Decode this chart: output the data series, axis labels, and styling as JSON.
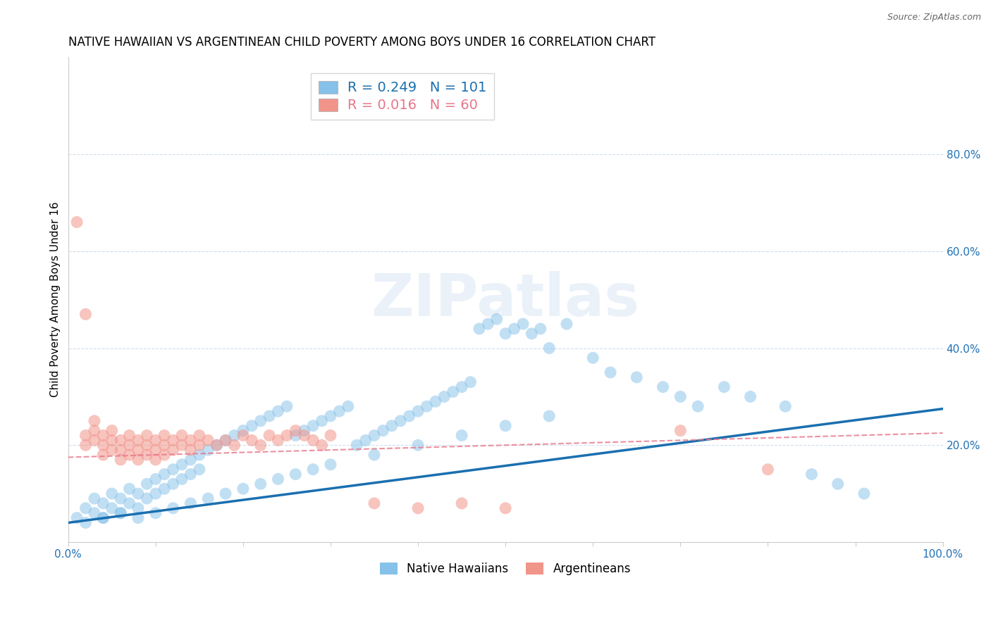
{
  "title": "NATIVE HAWAIIAN VS ARGENTINEAN CHILD POVERTY AMONG BOYS UNDER 16 CORRELATION CHART",
  "source": "Source: ZipAtlas.com",
  "ylabel": "Child Poverty Among Boys Under 16",
  "xlim": [
    0,
    1.0
  ],
  "ylim": [
    0,
    1.0
  ],
  "blue_color": "#85c1e9",
  "pink_color": "#f1948a",
  "blue_line_color": "#1a6faf",
  "pink_line_color": "#e8758a",
  "r_blue": 0.249,
  "n_blue": 101,
  "r_pink": 0.016,
  "n_pink": 60,
  "legend_label_blue": "Native Hawaiians",
  "legend_label_pink": "Argentineans",
  "watermark": "ZIPatlas",
  "blue_line_x0": 0.0,
  "blue_line_y0": 0.04,
  "blue_line_x1": 1.0,
  "blue_line_y1": 0.275,
  "pink_line_x0": 0.0,
  "pink_line_y0": 0.175,
  "pink_line_x1": 1.0,
  "pink_line_y1": 0.225,
  "blue_scatter_x": [
    0.01,
    0.02,
    0.03,
    0.03,
    0.04,
    0.04,
    0.05,
    0.05,
    0.06,
    0.06,
    0.07,
    0.07,
    0.08,
    0.08,
    0.09,
    0.09,
    0.1,
    0.1,
    0.11,
    0.11,
    0.12,
    0.12,
    0.13,
    0.13,
    0.14,
    0.14,
    0.15,
    0.15,
    0.16,
    0.17,
    0.18,
    0.19,
    0.2,
    0.21,
    0.22,
    0.23,
    0.24,
    0.25,
    0.26,
    0.27,
    0.28,
    0.29,
    0.3,
    0.31,
    0.32,
    0.33,
    0.34,
    0.35,
    0.36,
    0.37,
    0.38,
    0.39,
    0.4,
    0.41,
    0.42,
    0.43,
    0.44,
    0.45,
    0.46,
    0.47,
    0.48,
    0.49,
    0.5,
    0.51,
    0.52,
    0.53,
    0.54,
    0.55,
    0.57,
    0.6,
    0.62,
    0.65,
    0.68,
    0.7,
    0.72,
    0.75,
    0.78,
    0.82,
    0.85,
    0.88,
    0.91,
    0.02,
    0.04,
    0.06,
    0.08,
    0.1,
    0.12,
    0.14,
    0.16,
    0.18,
    0.2,
    0.22,
    0.24,
    0.26,
    0.28,
    0.3,
    0.35,
    0.4,
    0.45,
    0.5,
    0.55
  ],
  "blue_scatter_y": [
    0.05,
    0.07,
    0.09,
    0.06,
    0.08,
    0.05,
    0.1,
    0.07,
    0.09,
    0.06,
    0.11,
    0.08,
    0.1,
    0.07,
    0.12,
    0.09,
    0.13,
    0.1,
    0.14,
    0.11,
    0.15,
    0.12,
    0.16,
    0.13,
    0.17,
    0.14,
    0.18,
    0.15,
    0.19,
    0.2,
    0.21,
    0.22,
    0.23,
    0.24,
    0.25,
    0.26,
    0.27,
    0.28,
    0.22,
    0.23,
    0.24,
    0.25,
    0.26,
    0.27,
    0.28,
    0.2,
    0.21,
    0.22,
    0.23,
    0.24,
    0.25,
    0.26,
    0.27,
    0.28,
    0.29,
    0.3,
    0.31,
    0.32,
    0.33,
    0.44,
    0.45,
    0.46,
    0.43,
    0.44,
    0.45,
    0.43,
    0.44,
    0.4,
    0.45,
    0.38,
    0.35,
    0.34,
    0.32,
    0.3,
    0.28,
    0.32,
    0.3,
    0.28,
    0.14,
    0.12,
    0.1,
    0.04,
    0.05,
    0.06,
    0.05,
    0.06,
    0.07,
    0.08,
    0.09,
    0.1,
    0.11,
    0.12,
    0.13,
    0.14,
    0.15,
    0.16,
    0.18,
    0.2,
    0.22,
    0.24,
    0.26
  ],
  "pink_scatter_x": [
    0.01,
    0.02,
    0.02,
    0.02,
    0.03,
    0.03,
    0.03,
    0.04,
    0.04,
    0.04,
    0.05,
    0.05,
    0.05,
    0.06,
    0.06,
    0.06,
    0.07,
    0.07,
    0.07,
    0.08,
    0.08,
    0.08,
    0.09,
    0.09,
    0.09,
    0.1,
    0.1,
    0.1,
    0.11,
    0.11,
    0.11,
    0.12,
    0.12,
    0.13,
    0.13,
    0.14,
    0.14,
    0.15,
    0.15,
    0.16,
    0.17,
    0.18,
    0.19,
    0.2,
    0.21,
    0.22,
    0.23,
    0.24,
    0.25,
    0.26,
    0.27,
    0.28,
    0.29,
    0.3,
    0.35,
    0.4,
    0.45,
    0.5,
    0.7,
    0.8
  ],
  "pink_scatter_y": [
    0.66,
    0.47,
    0.22,
    0.2,
    0.25,
    0.23,
    0.21,
    0.22,
    0.2,
    0.18,
    0.23,
    0.21,
    0.19,
    0.21,
    0.19,
    0.17,
    0.22,
    0.2,
    0.18,
    0.21,
    0.19,
    0.17,
    0.22,
    0.2,
    0.18,
    0.21,
    0.19,
    0.17,
    0.22,
    0.2,
    0.18,
    0.21,
    0.19,
    0.22,
    0.2,
    0.21,
    0.19,
    0.22,
    0.2,
    0.21,
    0.2,
    0.21,
    0.2,
    0.22,
    0.21,
    0.2,
    0.22,
    0.21,
    0.22,
    0.23,
    0.22,
    0.21,
    0.2,
    0.22,
    0.08,
    0.07,
    0.08,
    0.07,
    0.23,
    0.15
  ],
  "title_fontsize": 12,
  "axis_label_fontsize": 11,
  "tick_fontsize": 11
}
